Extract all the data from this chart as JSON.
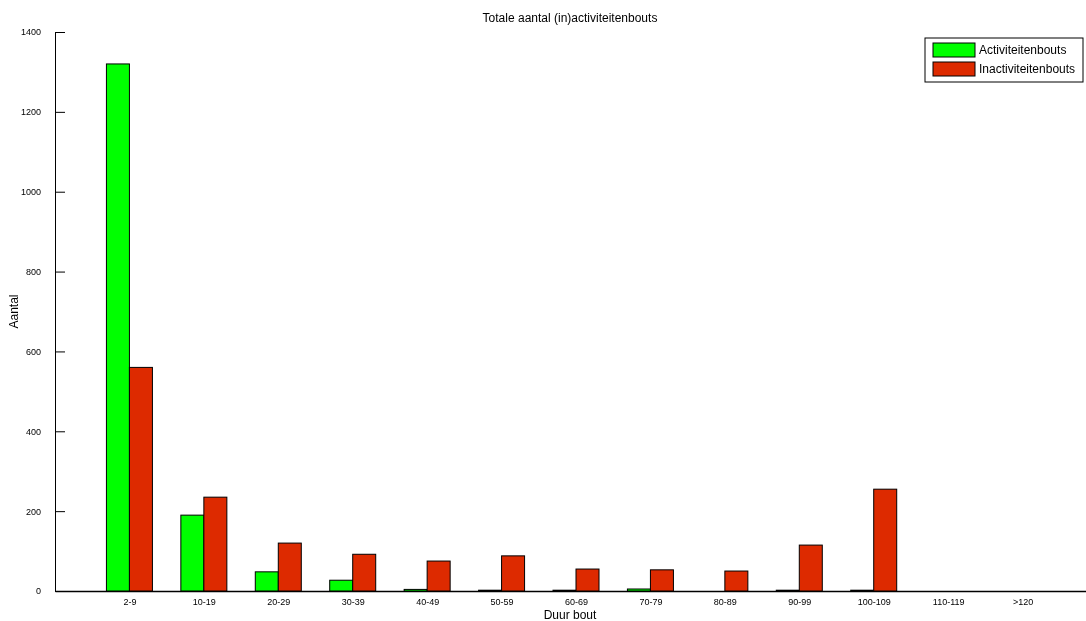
{
  "chart_data": {
    "type": "bar",
    "title": "Totale aantal (in)activiteitenbouts",
    "xlabel": "Duur bout",
    "ylabel": "Aantal",
    "categories": [
      "2-9",
      "10-19",
      "20-29",
      "30-39",
      "40-49",
      "50-59",
      "60-69",
      "70-79",
      "80-89",
      "90-99",
      "100-109",
      "110-119",
      ">120"
    ],
    "series": [
      {
        "name": "Activiteitenbouts",
        "color": "#00ff00",
        "values": [
          1320,
          190,
          48,
          27,
          4,
          2,
          2,
          5,
          0,
          2,
          2,
          0,
          0
        ]
      },
      {
        "name": "Inactiviteitenbouts",
        "color": "#dd2a00",
        "values": [
          560,
          235,
          120,
          92,
          75,
          88,
          55,
          53,
          50,
          115,
          255,
          0,
          0
        ]
      }
    ],
    "ylim": [
      0,
      1400
    ],
    "yticks": [
      0,
      200,
      400,
      600,
      800,
      1000,
      1200,
      1400
    ],
    "grid": false,
    "legend": "top right"
  }
}
